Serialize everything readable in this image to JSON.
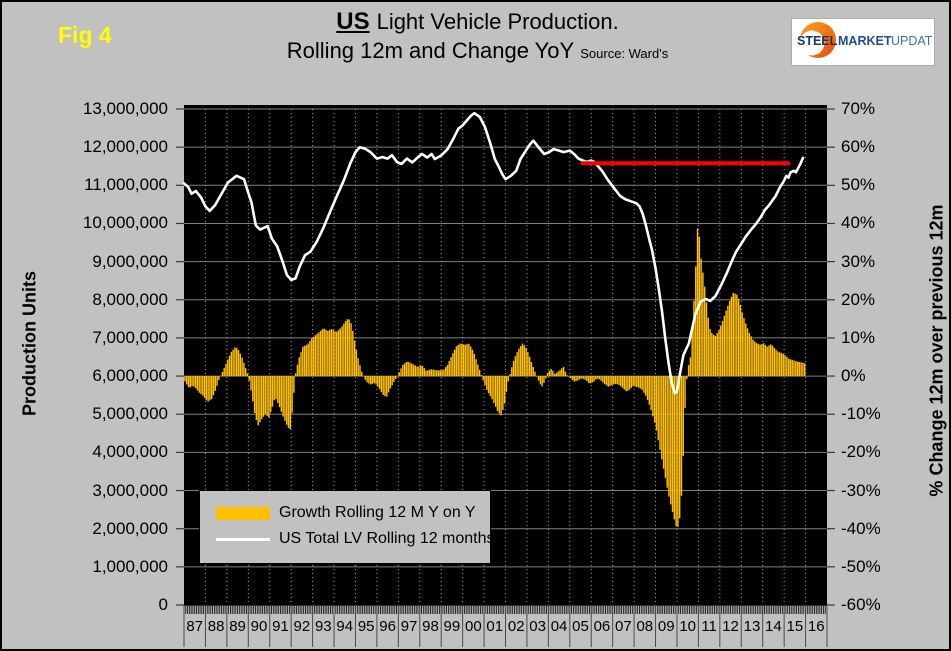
{
  "figure_label": "Fig 4",
  "title": {
    "us": "US",
    "line1_rest": "Light Vehicle Production.",
    "line2": "Rolling 12m and Change YoY",
    "source": "Source: Ward's"
  },
  "logo": {
    "steel": "STEEL",
    "market": "MARKET",
    "update": "UPDATE"
  },
  "axes": {
    "left_title": "Production Units",
    "right_title": "% Change 12m over previous 12m",
    "left_ticks": [
      "13,000,000",
      "12,000,000",
      "11,000,000",
      "10,000,000",
      "9,000,000",
      "8,000,000",
      "7,000,000",
      "6,000,000",
      "5,000,000",
      "4,000,000",
      "3,000,000",
      "2,000,000",
      "1,000,000",
      "0"
    ],
    "right_ticks": [
      "70%",
      "60%",
      "50%",
      "40%",
      "30%",
      "20%",
      "10%",
      "0%",
      "-10%",
      "-20%",
      "-30%",
      "-40%",
      "-50%",
      "-60%"
    ],
    "x_labels": [
      "87",
      "88",
      "89",
      "90",
      "91",
      "92",
      "93",
      "94",
      "95",
      "96",
      "97",
      "98",
      "99",
      "00",
      "01",
      "02",
      "03",
      "04",
      "05",
      "06",
      "07",
      "08",
      "09",
      "10",
      "11",
      "12",
      "13",
      "14",
      "15",
      "16"
    ]
  },
  "legend": {
    "items": [
      {
        "swatch": "bar",
        "label": "Growth Rolling 12 M Y on Y"
      },
      {
        "swatch": "line",
        "label": "US Total LV Rolling 12 months"
      }
    ]
  },
  "colors": {
    "background": "#C1C1C1",
    "plot_background": "#000000",
    "bar": "#FFC000",
    "line": "#FFFFFF",
    "reference_line": "#FF0000",
    "figure_label": "#FFFF00",
    "grid_h": "#7F7F7F",
    "grid_v": "#A8A8A8"
  },
  "chart_data": {
    "type": "combo",
    "title": "US Light Vehicle Production. Rolling 12m and Change YoY",
    "source": "Ward's",
    "x_axis": {
      "unit": "year",
      "range": [
        1987,
        2017
      ],
      "tick_labels": [
        "87",
        "88",
        "89",
        "90",
        "91",
        "92",
        "93",
        "94",
        "95",
        "96",
        "97",
        "98",
        "99",
        "00",
        "01",
        "02",
        "03",
        "04",
        "05",
        "06",
        "07",
        "08",
        "09",
        "10",
        "11",
        "12",
        "13",
        "14",
        "15",
        "16"
      ]
    },
    "y_left": {
      "label": "Production Units",
      "min": 0,
      "max": 13000000,
      "tick_step": 1000000
    },
    "y_right": {
      "label": "% Change 12m over previous 12m",
      "min": -60,
      "max": 70,
      "tick_step": 10
    },
    "grid": true,
    "legend_position": "bottom-left-inside",
    "series": [
      {
        "name": "Growth Rolling 12 M Y on Y",
        "type": "bar",
        "axis": "right",
        "unit": "percent",
        "color": "#FFC000",
        "x": [
          1987.0,
          1987.1,
          1987.25,
          1987.4,
          1987.55,
          1987.7,
          1987.9,
          1988.1,
          1988.3,
          1988.5,
          1988.65,
          1988.8,
          1989.0,
          1989.2,
          1989.4,
          1989.55,
          1989.7,
          1989.85,
          1990.0,
          1990.15,
          1990.3,
          1990.45,
          1990.6,
          1990.8,
          1990.95,
          1991.1,
          1991.25,
          1991.45,
          1991.65,
          1991.85,
          1991.97,
          1992.1,
          1992.2,
          1992.35,
          1992.55,
          1992.75,
          1992.95,
          1993.15,
          1993.35,
          1993.5,
          1993.7,
          1993.9,
          1994.1,
          1994.35,
          1994.55,
          1994.68,
          1994.82,
          1995.0,
          1995.15,
          1995.3,
          1995.5,
          1995.7,
          1995.9,
          1996.1,
          1996.3,
          1996.45,
          1996.6,
          1996.8,
          1997.0,
          1997.2,
          1997.4,
          1997.6,
          1997.9,
          1998.1,
          1998.3,
          1998.55,
          1998.8,
          1999.1,
          1999.3,
          1999.5,
          1999.7,
          1999.9,
          2000.1,
          2000.3,
          2000.5,
          2000.65,
          2000.8,
          2000.95,
          2001.15,
          2001.35,
          2001.5,
          2001.65,
          2001.8,
          2001.95,
          2002.1,
          2002.25,
          2002.4,
          2002.6,
          2002.8,
          2002.95,
          2003.1,
          2003.25,
          2003.4,
          2003.6,
          2003.72,
          2003.85,
          2003.98,
          2004.15,
          2004.3,
          2004.55,
          2004.7,
          2004.85,
          2005.0,
          2005.2,
          2005.35,
          2005.55,
          2005.75,
          2005.9,
          2006.1,
          2006.25,
          2006.4,
          2006.6,
          2006.8,
          2006.95,
          2007.15,
          2007.35,
          2007.5,
          2007.65,
          2007.8,
          2007.95,
          2008.15,
          2008.35,
          2008.55,
          2008.75,
          2009.0,
          2009.2,
          2009.4,
          2009.6,
          2009.78,
          2009.95,
          2010.08,
          2010.18,
          2010.26,
          2010.33,
          2010.4,
          2010.5,
          2010.62,
          2010.72,
          2010.8,
          2010.88,
          2010.95,
          2011.05,
          2011.12,
          2011.22,
          2011.32,
          2011.42,
          2011.52,
          2011.65,
          2011.8,
          2011.95,
          2012.1,
          2012.25,
          2012.45,
          2012.62,
          2012.78,
          2012.9,
          2013.05,
          2013.2,
          2013.38,
          2013.55,
          2013.72,
          2013.9,
          2014.05,
          2014.2,
          2014.4,
          2014.55,
          2014.72,
          2014.9,
          2015.05,
          2015.2,
          2015.4,
          2015.6,
          2015.8,
          2016.0
        ],
        "values": [
          -1.0,
          -2.0,
          -3.2,
          -2.5,
          -3.2,
          -4.3,
          -5.2,
          -6.8,
          -6.0,
          -3.3,
          -0.6,
          1.2,
          3.8,
          6.3,
          7.7,
          6.8,
          5.0,
          2.5,
          0.0,
          -4.5,
          -10.0,
          -13.0,
          -11.5,
          -9.9,
          -11.0,
          -8.5,
          -5.5,
          -8.0,
          -11.0,
          -13.5,
          -14.0,
          -6.0,
          0.5,
          4.5,
          7.8,
          8.2,
          9.8,
          10.8,
          11.7,
          12.6,
          11.8,
          12.4,
          11.5,
          12.8,
          14.5,
          15.2,
          13.5,
          8.0,
          4.0,
          1.0,
          -1.5,
          -2.2,
          -1.8,
          -3.2,
          -5.0,
          -5.5,
          -3.5,
          -1.5,
          0.5,
          2.9,
          3.8,
          3.4,
          2.4,
          2.9,
          1.4,
          1.8,
          1.5,
          1.6,
          3.0,
          5.5,
          7.8,
          8.6,
          8.2,
          8.5,
          6.5,
          4.0,
          1.5,
          -1.0,
          -4.0,
          -5.8,
          -7.5,
          -9.5,
          -10.3,
          -7.5,
          -2.0,
          1.5,
          4.5,
          7.0,
          8.6,
          7.5,
          5.5,
          3.0,
          0.8,
          -2.0,
          -2.8,
          -1.0,
          1.1,
          2.0,
          0.5,
          1.6,
          2.5,
          0.3,
          -0.3,
          -1.5,
          -1.2,
          -0.6,
          -1.0,
          -2.0,
          -1.6,
          -0.6,
          -0.9,
          -2.0,
          -2.8,
          -2.4,
          -2.0,
          -2.5,
          -3.3,
          -4.1,
          -3.5,
          -2.6,
          -2.9,
          -3.4,
          -5.2,
          -8.1,
          -13.0,
          -19.1,
          -25.0,
          -31.0,
          -35.4,
          -39.3,
          -39.6,
          -34.5,
          -25.7,
          -15.1,
          -4.6,
          2.0,
          4.5,
          13.0,
          20.5,
          29.3,
          38.9,
          36.3,
          31.0,
          26.6,
          22.2,
          17.0,
          12.6,
          11.0,
          10.5,
          12.0,
          14.0,
          16.5,
          19.6,
          21.8,
          21.5,
          20.0,
          16.5,
          13.9,
          11.2,
          9.5,
          8.6,
          8.2,
          8.6,
          7.7,
          8.4,
          7.3,
          6.4,
          6.0,
          5.5,
          4.6,
          4.2,
          3.8,
          3.6,
          3.3
        ]
      },
      {
        "name": "US Total LV Rolling 12 months",
        "type": "line",
        "axis": "left",
        "unit": "million_units",
        "color": "#FFFFFF",
        "stroke_width": 2.6,
        "x": [
          1987.0,
          1987.2,
          1987.35,
          1987.55,
          1987.8,
          1988.0,
          1988.2,
          1988.45,
          1988.65,
          1989.05,
          1989.45,
          1989.8,
          1990.0,
          1990.15,
          1990.35,
          1990.55,
          1990.9,
          1991.1,
          1991.35,
          1991.6,
          1991.8,
          1992.0,
          1992.2,
          1992.4,
          1992.65,
          1992.9,
          1993.2,
          1993.5,
          1993.8,
          1994.1,
          1994.45,
          1994.75,
          1995.0,
          1995.2,
          1995.45,
          1995.7,
          1996.0,
          1996.25,
          1996.5,
          1996.7,
          1996.95,
          1997.15,
          1997.4,
          1997.65,
          1997.9,
          1998.1,
          1998.35,
          1998.55,
          1998.7,
          1999.0,
          1999.3,
          1999.6,
          1999.8,
          2000.0,
          2000.2,
          2000.4,
          2000.55,
          2000.8,
          2001.05,
          2001.3,
          2001.5,
          2001.7,
          2001.85,
          2002.0,
          2002.25,
          2002.5,
          2002.7,
          2002.95,
          2003.15,
          2003.3,
          2003.55,
          2003.8,
          2004.0,
          2004.25,
          2004.5,
          2004.7,
          2005.0,
          2005.2,
          2005.4,
          2005.6,
          2005.8,
          2006.0,
          2006.15,
          2006.3,
          2006.5,
          2006.8,
          2007.1,
          2007.35,
          2007.6,
          2007.85,
          2008.1,
          2008.25,
          2008.4,
          2008.55,
          2008.7,
          2008.85,
          2009.0,
          2009.15,
          2009.3,
          2009.45,
          2009.6,
          2009.75,
          2009.9,
          2010.0,
          2010.15,
          2010.3,
          2010.55,
          2010.85,
          2011.1,
          2011.35,
          2011.55,
          2011.8,
          2012.05,
          2012.3,
          2012.55,
          2012.75,
          2013.0,
          2013.2,
          2013.45,
          2013.7,
          2013.9,
          2014.1,
          2014.3,
          2014.6,
          2014.8,
          2015.0,
          2015.1,
          2015.2,
          2015.3,
          2015.45,
          2015.55,
          2015.65,
          2015.75,
          2015.88
        ],
        "values": [
          11.05,
          10.95,
          10.78,
          10.85,
          10.68,
          10.45,
          10.33,
          10.48,
          10.68,
          11.07,
          11.25,
          11.16,
          10.8,
          10.55,
          9.95,
          9.84,
          9.93,
          9.6,
          9.4,
          9.0,
          8.65,
          8.52,
          8.56,
          8.87,
          9.17,
          9.26,
          9.53,
          9.88,
          10.28,
          10.68,
          11.12,
          11.56,
          11.87,
          12.0,
          11.96,
          11.87,
          11.7,
          11.74,
          11.7,
          11.79,
          11.6,
          11.56,
          11.7,
          11.6,
          11.73,
          11.82,
          11.73,
          11.82,
          11.69,
          11.78,
          11.95,
          12.26,
          12.48,
          12.57,
          12.7,
          12.83,
          12.89,
          12.79,
          12.52,
          12.08,
          11.69,
          11.47,
          11.29,
          11.16,
          11.25,
          11.38,
          11.69,
          11.91,
          12.08,
          12.17,
          11.99,
          11.82,
          11.86,
          11.95,
          11.91,
          11.87,
          11.91,
          11.82,
          11.7,
          11.65,
          11.61,
          11.65,
          11.61,
          11.51,
          11.38,
          11.12,
          10.9,
          10.72,
          10.63,
          10.58,
          10.53,
          10.45,
          10.25,
          9.95,
          9.6,
          9.27,
          8.83,
          8.3,
          7.7,
          7.0,
          6.37,
          5.84,
          5.55,
          5.6,
          6.1,
          6.55,
          6.85,
          7.6,
          7.95,
          8.02,
          7.97,
          8.1,
          8.37,
          8.67,
          9.0,
          9.25,
          9.47,
          9.65,
          9.83,
          10.0,
          10.16,
          10.35,
          10.48,
          10.72,
          10.94,
          11.12,
          11.25,
          11.2,
          11.34,
          11.38,
          11.34,
          11.45,
          11.55,
          11.72
        ]
      },
      {
        "name": "reference-line",
        "type": "line",
        "axis": "left",
        "unit": "million_units",
        "color": "#FF0000",
        "stroke_width": 4,
        "x": [
          2005.6,
          2015.2
        ],
        "values": [
          11.58,
          11.58
        ]
      }
    ]
  }
}
